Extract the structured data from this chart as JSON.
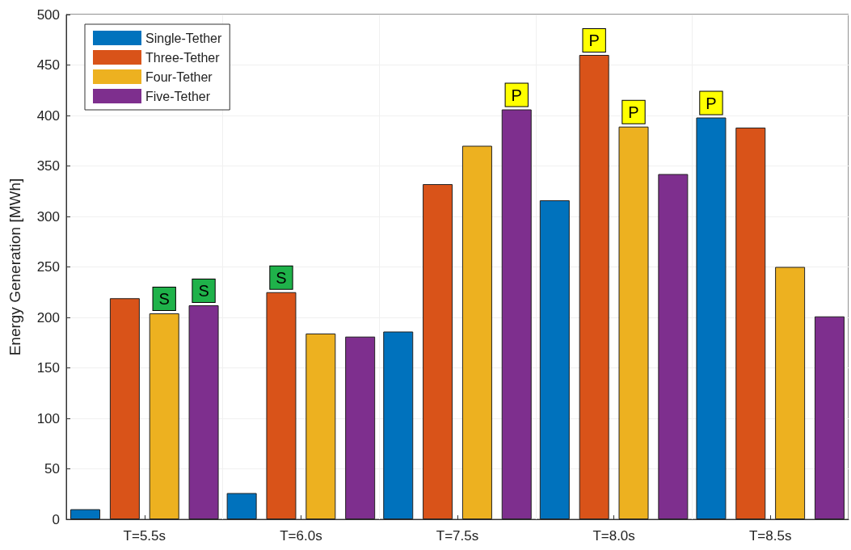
{
  "chart_data": {
    "type": "bar",
    "ylabel": "Energy Generation [MWh]",
    "categories": [
      "T=5.5s",
      "T=6.0s",
      "T=7.5s",
      "T=8.0s",
      "T=8.5s"
    ],
    "series": [
      {
        "name": "Single-Tether",
        "color": "#0072bd",
        "values": [
          10,
          26,
          186,
          316,
          398
        ],
        "value_labels": [
          null,
          null,
          null,
          null,
          "P"
        ]
      },
      {
        "name": "Three-Tether",
        "color": "#d95319",
        "values": [
          219,
          225,
          332,
          460,
          388
        ],
        "value_labels": [
          null,
          "S",
          null,
          "P",
          null
        ]
      },
      {
        "name": "Four-Tether",
        "color": "#edb120",
        "values": [
          204,
          184,
          370,
          389,
          250
        ],
        "value_labels": [
          "S",
          null,
          null,
          "P",
          null
        ]
      },
      {
        "name": "Five-Tether",
        "color": "#7e2f8e",
        "values": [
          212,
          181,
          406,
          342,
          201
        ],
        "value_labels": [
          "S",
          null,
          "P",
          null,
          null
        ]
      }
    ],
    "ylim": [
      0,
      500
    ],
    "yticks": [
      0,
      50,
      100,
      150,
      200,
      250,
      300,
      350,
      400,
      450,
      500
    ],
    "grid": true,
    "legend": "top left"
  }
}
